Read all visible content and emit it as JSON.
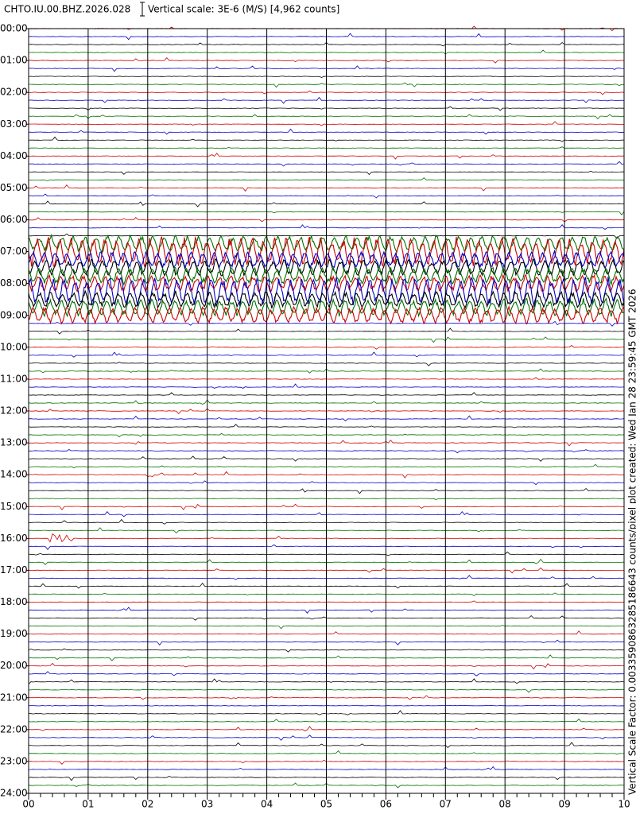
{
  "header": {
    "station": "CHTO.IU.00.BHZ.2026.028",
    "scale": "Vertical scale: 3E-6 (M/S) [4,962 counts]"
  },
  "y_labels": [
    "00:00",
    "01:00",
    "02:00",
    "03:00",
    "04:00",
    "05:00",
    "06:00",
    "07:00",
    "08:00",
    "09:00",
    "10:00",
    "11:00",
    "12:00",
    "13:00",
    "14:00",
    "15:00",
    "16:00",
    "17:00",
    "18:00",
    "19:00",
    "20:00",
    "21:00",
    "22:00",
    "23:00",
    "24:00"
  ],
  "x_labels": [
    "00",
    "01",
    "02",
    "03",
    "04",
    "05",
    "06",
    "07",
    "08",
    "09",
    "10"
  ],
  "side_note": "Vertical Scale Factor: 0.0033590863285186643 counts/pixel plot created: Wed Jan 28 23:59:45 GMT 2026"
}
